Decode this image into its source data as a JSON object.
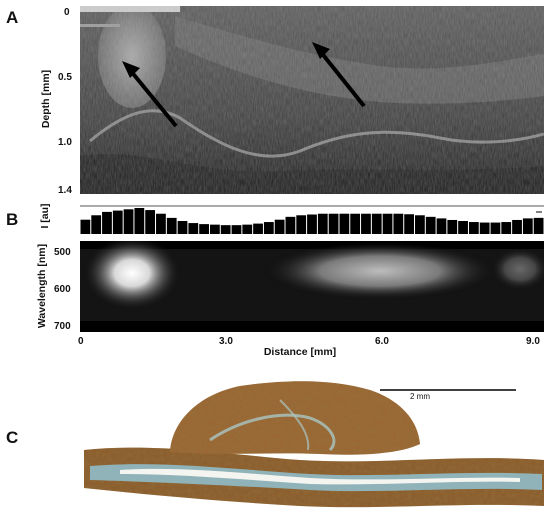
{
  "panels": {
    "a": {
      "letter": "A"
    },
    "b": {
      "letter": "B"
    },
    "c": {
      "letter": "C"
    }
  },
  "panel_a": {
    "ylabel": "Depth [mm]",
    "yticks": [
      "0",
      "0.5",
      "1.0",
      "1.4"
    ]
  },
  "panel_b": {
    "intensity_label": "I [au]",
    "wavelength_label": "Wavelength [nm]",
    "wavelength_ticks": [
      "500",
      "600",
      "700"
    ],
    "intensity_bars": [
      0.55,
      0.72,
      0.85,
      0.9,
      0.95,
      1.0,
      0.92,
      0.78,
      0.62,
      0.5,
      0.42,
      0.38,
      0.36,
      0.34,
      0.34,
      0.36,
      0.4,
      0.46,
      0.55,
      0.66,
      0.72,
      0.75,
      0.78,
      0.78,
      0.78,
      0.78,
      0.78,
      0.78,
      0.78,
      0.78,
      0.76,
      0.72,
      0.66,
      0.6,
      0.54,
      0.5,
      0.46,
      0.44,
      0.44,
      0.46,
      0.54,
      0.6,
      0.62
    ],
    "xlabel": "Distance [mm]",
    "xticks": [
      "0",
      "3.0",
      "6.0",
      "9.0"
    ]
  },
  "panel_c": {
    "scalebar_label": "2 mm"
  },
  "colors": {
    "oct_background": "#4a4a4a",
    "tissue_brown": "#8a5a2b",
    "stroma_blue": "#8fb3b8"
  }
}
